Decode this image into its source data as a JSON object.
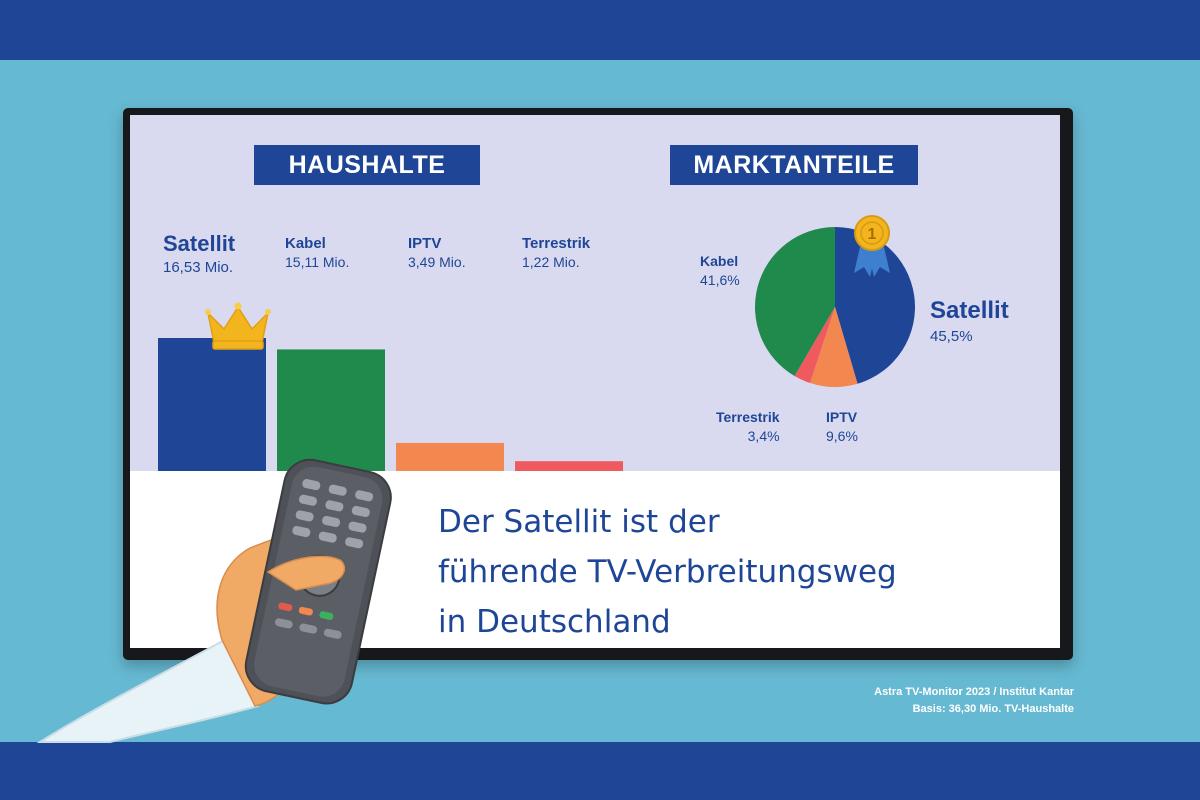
{
  "colors": {
    "brand_blue": "#1f4696",
    "green": "#1f8a4c",
    "orange": "#f2884f",
    "red": "#ef5a5f",
    "gold": "#f2b51e"
  },
  "haushalte": {
    "title": "HAUSHALTE",
    "labels": [
      {
        "name": "Satellit",
        "value": "16,53 Mio."
      },
      {
        "name": "Kabel",
        "value": "15,11 Mio."
      },
      {
        "name": "IPTV",
        "value": "3,49 Mio."
      },
      {
        "name": "Terrestrik",
        "value": "1,22 Mio."
      }
    ]
  },
  "marktanteile": {
    "title": "MARKTANTEILE",
    "labels": {
      "satellit": {
        "name": "Satellit",
        "value": "45,5%"
      },
      "kabel": {
        "name": "Kabel",
        "value": "41,6%"
      },
      "terrestrik": {
        "name": "Terrestrik",
        "value": "3,4%"
      },
      "iptv": {
        "name": "IPTV",
        "value": "9,6%"
      }
    },
    "medal_number": "1"
  },
  "chart_data": [
    {
      "type": "bar",
      "title": "HAUSHALTE",
      "categories": [
        "Satellit",
        "Kabel",
        "IPTV",
        "Terrestrik"
      ],
      "values": [
        16.53,
        15.11,
        3.49,
        1.22
      ],
      "value_labels": [
        "16,53 Mio.",
        "15,11 Mio.",
        "3,49 Mio.",
        "1,22 Mio."
      ],
      "colors": [
        "#1f4696",
        "#1f8a4c",
        "#f2884f",
        "#ef5a5f"
      ],
      "annotations": [
        "crown-over-satellit"
      ]
    },
    {
      "type": "pie",
      "title": "MARKTANTEILE",
      "categories": [
        "Satellit",
        "IPTV",
        "Terrestrik",
        "Kabel"
      ],
      "values": [
        45.5,
        9.6,
        3.4,
        41.6
      ],
      "value_labels": [
        "45,5%",
        "9,6%",
        "3,4%",
        "41,6%"
      ],
      "colors": [
        "#1f4696",
        "#f2884f",
        "#ef5a5f",
        "#1f8a4c"
      ],
      "annotations": [
        "medal-1-on-satellit"
      ]
    }
  ],
  "caption": {
    "line1": "Der Satellit ist der",
    "line2": "führende TV-Verbreitungsweg",
    "line3": "in Deutschland"
  },
  "source": {
    "line1": "Astra TV-Monitor 2023 / Institut Kantar",
    "line2": "Basis: 36,30 Mio. TV-Haushalte"
  }
}
